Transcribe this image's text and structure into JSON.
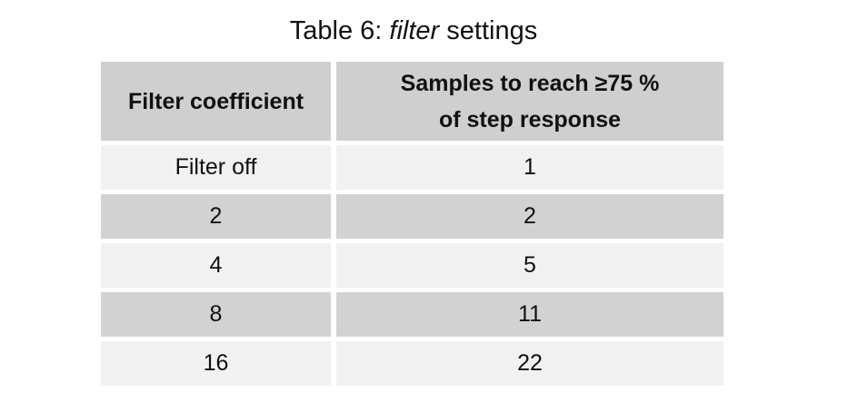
{
  "caption": {
    "prefix": "Table 6: ",
    "italic": "filter",
    "suffix": " settings"
  },
  "table": {
    "headers": [
      "Filter coefficient",
      "Samples to reach ≥75 % of step response"
    ],
    "header_2_lines": [
      "Samples to reach ≥75 %",
      "of step response"
    ],
    "rows": [
      [
        "Filter off",
        "1"
      ],
      [
        "2",
        "2"
      ],
      [
        "4",
        "5"
      ],
      [
        "8",
        "11"
      ],
      [
        "16",
        "22"
      ]
    ]
  },
  "colors": {
    "header_bg": "#cfcfcf",
    "row_light": "#f1f1f1",
    "row_dark": "#d2d2d2"
  }
}
